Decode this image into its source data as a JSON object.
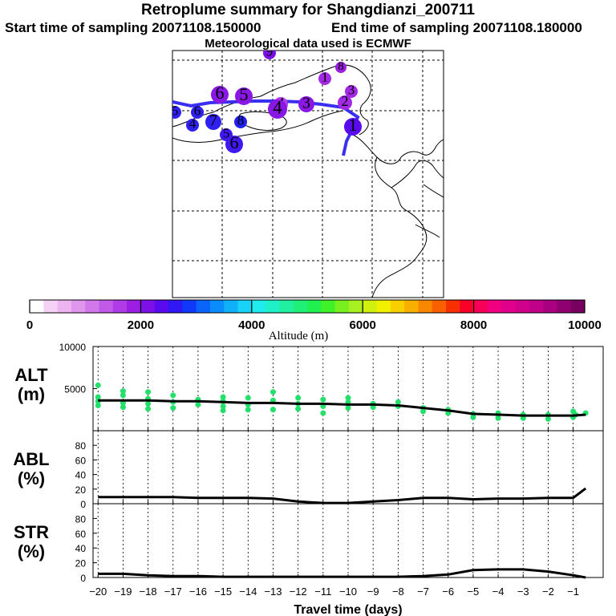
{
  "header": {
    "title": "Retroplume summary for Shangdianzi_200711",
    "start_sampling": "Start time of sampling 20071108.150000",
    "end_sampling": "End time of sampling 20071108.180000",
    "met_data": "Meteorological data used is ECMWF"
  },
  "colors": {
    "track": "#3a2ff0",
    "alt_points": "#22e06a",
    "line": "#000000"
  },
  "colorbar": {
    "title": "Altitude (m)",
    "ticks": [
      "0",
      "2000",
      "4000",
      "6000",
      "8000",
      "10000"
    ],
    "colors": [
      "#ffffff",
      "#f5d2f5",
      "#ecb4f0",
      "#e096ec",
      "#d278ea",
      "#c25ae8",
      "#b03ce6",
      "#9b1ee2",
      "#7c10e6",
      "#5a0aee",
      "#3018f4",
      "#1038f8",
      "#0a64fa",
      "#0a8cfa",
      "#10b0f8",
      "#18d2f8",
      "#20ecf0",
      "#20f0c8",
      "#20f0a0",
      "#20f078",
      "#20f050",
      "#40f028",
      "#78f020",
      "#a8f020",
      "#d0f010",
      "#f0f000",
      "#f8d000",
      "#f8b000",
      "#f88800",
      "#f86000",
      "#f83000",
      "#f80028",
      "#f80058",
      "#f00080",
      "#e0008c",
      "#d0008c",
      "#c00088",
      "#a80080",
      "#900070",
      "#780060"
    ]
  },
  "map": {
    "trajectory_labels": [
      {
        "label": "9",
        "size": 8,
        "color": "#7a10e6"
      },
      {
        "label": "8",
        "size": 7,
        "color": "#9b1ee2"
      },
      {
        "label": "1",
        "size": 8,
        "color": "#a32ae4"
      },
      {
        "label": "3",
        "size": 8,
        "color": "#a32ae4"
      },
      {
        "label": "2",
        "size": 9,
        "color": "#a32ae4"
      },
      {
        "label": "4",
        "size": 9,
        "color": "#b03ce6"
      },
      {
        "label": "6",
        "size": 11,
        "color": "#8a18e4"
      },
      {
        "label": "5",
        "size": 11,
        "color": "#8a18e4"
      },
      {
        "label": "4",
        "size": 12,
        "color": "#8a18e4"
      },
      {
        "label": "3",
        "size": 10,
        "color": "#8a18e4"
      },
      {
        "label": "1",
        "size": 11,
        "color": "#5a0aee"
      },
      {
        "label": "5",
        "size": 8,
        "color": "#3020f0"
      },
      {
        "label": "6",
        "size": 8,
        "color": "#3020f0"
      },
      {
        "label": "4",
        "size": 8,
        "color": "#3020f0"
      },
      {
        "label": "7",
        "size": 10,
        "color": "#3020f0"
      },
      {
        "label": "8",
        "size": 8,
        "color": "#2020f0"
      },
      {
        "label": "6",
        "size": 11,
        "color": "#4018f0"
      },
      {
        "label": "5",
        "size": 8,
        "color": "#4018f0"
      }
    ]
  },
  "chart_data": [
    {
      "type": "scatter",
      "name": "ALT",
      "ylabel": "ALT",
      "yunit": "(m)",
      "ylim": [
        0,
        10000
      ],
      "yticks": [
        "10000",
        "5000"
      ],
      "xlim": [
        -20,
        0
      ],
      "line": {
        "x": [
          -20,
          -19,
          -18,
          -17,
          -16,
          -15,
          -14,
          -13,
          -12,
          -11,
          -10,
          -9,
          -8,
          -7,
          -6,
          -5,
          -4,
          -3,
          -2,
          -1,
          -0.5
        ],
        "y": [
          3600,
          3600,
          3600,
          3500,
          3500,
          3400,
          3300,
          3300,
          3200,
          3200,
          3100,
          3100,
          3000,
          2700,
          2400,
          2000,
          1900,
          1800,
          1800,
          1800,
          1900
        ]
      },
      "points": {
        "x": [
          -20,
          -20,
          -20,
          -20,
          -19,
          -19,
          -19,
          -19,
          -18,
          -18,
          -18,
          -18,
          -17,
          -17,
          -17,
          -16,
          -16,
          -15,
          -15,
          -15,
          -15,
          -14,
          -14,
          -14,
          -13,
          -13,
          -13,
          -12,
          -12,
          -12,
          -11,
          -11,
          -11,
          -10,
          -10,
          -10,
          -9,
          -9,
          -8,
          -8,
          -7,
          -7,
          -6,
          -6,
          -5,
          -5,
          -4,
          -4,
          -3,
          -3,
          -2,
          -2,
          -1,
          -1,
          -0.9,
          -0.5
        ],
        "y": [
          5400,
          4000,
          3500,
          3000,
          4700,
          4200,
          3300,
          2800,
          4600,
          3800,
          3200,
          2600,
          4200,
          3400,
          2700,
          3700,
          3100,
          4000,
          3500,
          2900,
          2400,
          3900,
          3100,
          2500,
          4600,
          3600,
          2500,
          3900,
          3200,
          2600,
          3700,
          2900,
          2100,
          3900,
          3400,
          2700,
          3200,
          2800,
          3400,
          2900,
          2700,
          2300,
          2500,
          2100,
          2000,
          1600,
          2100,
          1500,
          1900,
          1500,
          1900,
          1400,
          2300,
          1600,
          1900,
          2100
        ]
      }
    },
    {
      "type": "line",
      "name": "ABL",
      "ylabel": "ABL",
      "yunit": "(%)",
      "ylim": [
        0,
        100
      ],
      "yticks": [
        "80",
        "60",
        "40",
        "20",
        "0"
      ],
      "x": [
        -20,
        -19,
        -18,
        -17,
        -16,
        -15,
        -14,
        -13,
        -12,
        -11,
        -10,
        -9,
        -8,
        -7,
        -6,
        -5,
        -4,
        -3,
        -2,
        -1,
        -0.5
      ],
      "y": [
        9,
        9,
        9,
        9,
        8,
        8,
        8,
        7,
        3,
        1,
        1,
        3,
        5,
        8,
        8,
        6,
        7,
        7,
        8,
        8,
        21
      ]
    },
    {
      "type": "line",
      "name": "STR",
      "ylabel": "STR",
      "yunit": "(%)",
      "ylim": [
        0,
        100
      ],
      "yticks": [
        "80",
        "60",
        "40",
        "20",
        "0"
      ],
      "xlabel": "Travel time (days)",
      "xticks": [
        "−20",
        "−19",
        "−18",
        "−17",
        "−16",
        "−15",
        "−14",
        "−13",
        "−12",
        "−11",
        "−10",
        "−9",
        "−8",
        "−7",
        "−6",
        "−5",
        "−4",
        "−3",
        "−2",
        "−1"
      ],
      "x": [
        -20,
        -19,
        -18,
        -17,
        -16,
        -15,
        -14,
        -13,
        -12,
        -11,
        -10,
        -9,
        -8,
        -7,
        -6,
        -5,
        -4,
        -3,
        -2,
        -1,
        -0.5
      ],
      "y": [
        5,
        5,
        3,
        2,
        2,
        1,
        1,
        1,
        1,
        1,
        1,
        1,
        1,
        2,
        4,
        10,
        11,
        11,
        8,
        3,
        0
      ]
    }
  ]
}
